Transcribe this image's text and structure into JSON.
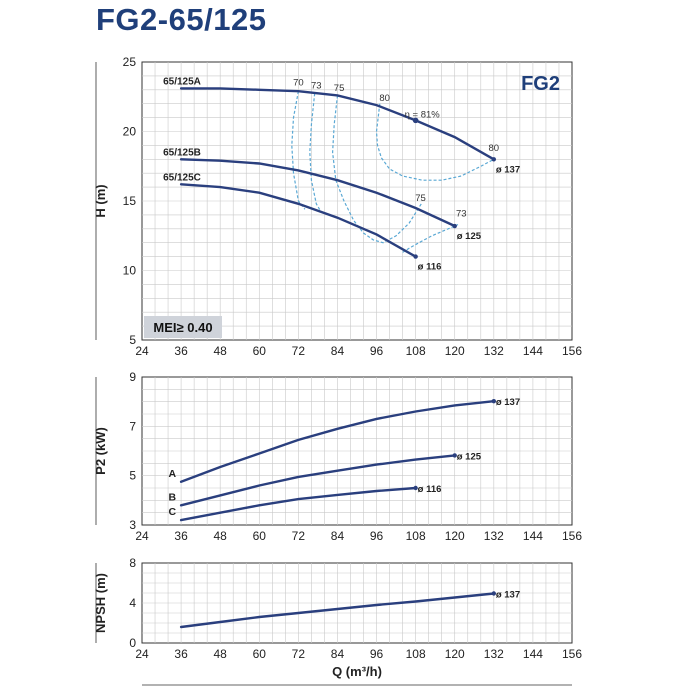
{
  "title": "FG2-65/125",
  "colors": {
    "curve": "#2a3f7e",
    "efficiency": "#5aa8d4",
    "grid": "#c9c9c9",
    "title": "#1f3f7a"
  },
  "chart_data": [
    {
      "id": "head",
      "type": "line",
      "badge": "FG2",
      "ylabel": "H (m)",
      "xlim": [
        24,
        156
      ],
      "ylim": [
        5,
        25
      ],
      "xticks": [
        "24",
        "36",
        "48",
        "60",
        "72",
        "84",
        "96",
        "108",
        "120",
        "132",
        "144",
        "156"
      ],
      "yticks": [
        "5",
        "10",
        "15",
        "20",
        "25"
      ],
      "note": "MEI≥ 0.40",
      "series": [
        {
          "name": "65/125A",
          "end_label": "ø 137",
          "x": [
            36,
            48,
            60,
            72,
            84,
            96,
            108,
            120,
            132
          ],
          "y": [
            23.1,
            23.1,
            23.0,
            22.9,
            22.6,
            21.9,
            20.8,
            19.6,
            18.0
          ]
        },
        {
          "name": "65/125B",
          "end_label": "ø 125",
          "x": [
            36,
            48,
            60,
            72,
            84,
            96,
            108,
            120
          ],
          "y": [
            18.0,
            17.9,
            17.7,
            17.2,
            16.5,
            15.6,
            14.5,
            13.2
          ]
        },
        {
          "name": "65/125C",
          "end_label": "ø 116",
          "x": [
            36,
            48,
            60,
            72,
            84,
            96,
            108
          ],
          "y": [
            16.2,
            16.0,
            15.6,
            14.8,
            13.8,
            12.6,
            11.0
          ]
        }
      ],
      "efficiency_labels": [
        {
          "text": "70",
          "x": 72,
          "y": 23.3
        },
        {
          "text": "73",
          "x": 77.5,
          "y": 23.1
        },
        {
          "text": "75",
          "x": 84.5,
          "y": 22.9
        },
        {
          "text": "80",
          "x": 98.5,
          "y": 22.2
        },
        {
          "text": "η = 81%",
          "x": 110,
          "y": 21.0
        },
        {
          "text": "80",
          "x": 132,
          "y": 18.6
        },
        {
          "text": "75",
          "x": 109.5,
          "y": 15.0
        },
        {
          "text": "73",
          "x": 122,
          "y": 13.9
        }
      ],
      "efficiency_point": {
        "x": 108,
        "y": 20.8
      },
      "efficiency_curves": [
        {
          "label": "70",
          "x": [
            72,
            70.5,
            70,
            70.5,
            72,
            74
          ],
          "y": [
            22.9,
            21,
            19,
            17,
            15,
            14.4
          ]
        },
        {
          "label": "73",
          "x": [
            77,
            76,
            75.5,
            76,
            77.5,
            79
          ],
          "y": [
            22.75,
            20.5,
            18.5,
            16.5,
            14.8,
            14.2
          ]
        },
        {
          "label": "75",
          "x": [
            84,
            83,
            82.5,
            83.5,
            86,
            89,
            92,
            95,
            98,
            102,
            106,
            110
          ],
          "y": [
            22.6,
            20.5,
            18.5,
            16.5,
            15.0,
            13.6,
            12.7,
            12.2,
            12.0,
            12.5,
            13.4,
            14.9
          ]
        },
        {
          "label": "73",
          "x": [
            104,
            106,
            109,
            113,
            117,
            121
          ],
          "y": [
            11.3,
            11.6,
            12.0,
            12.5,
            12.9,
            13.3
          ]
        },
        {
          "label": "80",
          "x": [
            97,
            96,
            96.3,
            97.5,
            100,
            104,
            110,
            116,
            122,
            128,
            132
          ],
          "y": [
            22.0,
            20.0,
            19.0,
            18.1,
            17.3,
            16.8,
            16.5,
            16.5,
            16.8,
            17.5,
            18.0
          ]
        }
      ]
    },
    {
      "id": "power",
      "type": "line",
      "ylabel": "P2 (kW)",
      "xlim": [
        24,
        156
      ],
      "ylim": [
        3,
        9
      ],
      "xticks": [
        "24",
        "36",
        "48",
        "60",
        "72",
        "84",
        "96",
        "108",
        "120",
        "132",
        "144",
        "156"
      ],
      "yticks": [
        "3",
        "5",
        "7",
        "9"
      ],
      "series": [
        {
          "name": "A",
          "end_label": "ø 137",
          "x": [
            36,
            48,
            60,
            72,
            84,
            96,
            108,
            120,
            132
          ],
          "y": [
            4.75,
            5.35,
            5.9,
            6.45,
            6.9,
            7.3,
            7.6,
            7.85,
            8.02
          ]
        },
        {
          "name": "B",
          "end_label": "ø 125",
          "x": [
            36,
            48,
            60,
            72,
            84,
            96,
            108,
            120
          ],
          "y": [
            3.8,
            4.2,
            4.6,
            4.95,
            5.2,
            5.45,
            5.65,
            5.82
          ]
        },
        {
          "name": "C",
          "end_label": "ø 116",
          "x": [
            36,
            48,
            60,
            72,
            84,
            96,
            108
          ],
          "y": [
            3.2,
            3.5,
            3.8,
            4.05,
            4.22,
            4.38,
            4.5
          ]
        }
      ]
    },
    {
      "id": "npsh",
      "type": "line",
      "ylabel": "NPSH (m)",
      "xlabel": "Q (m³/h)",
      "xlim": [
        24,
        156
      ],
      "ylim": [
        0,
        8
      ],
      "xticks": [
        "24",
        "36",
        "48",
        "60",
        "72",
        "84",
        "96",
        "108",
        "120",
        "132",
        "144",
        "156"
      ],
      "yticks": [
        "0",
        "4",
        "8"
      ],
      "series": [
        {
          "name": "",
          "end_label": "ø 137",
          "x": [
            36,
            48,
            60,
            72,
            84,
            96,
            108,
            120,
            132
          ],
          "y": [
            1.6,
            2.1,
            2.6,
            3.0,
            3.4,
            3.8,
            4.15,
            4.55,
            4.95
          ]
        }
      ]
    }
  ]
}
